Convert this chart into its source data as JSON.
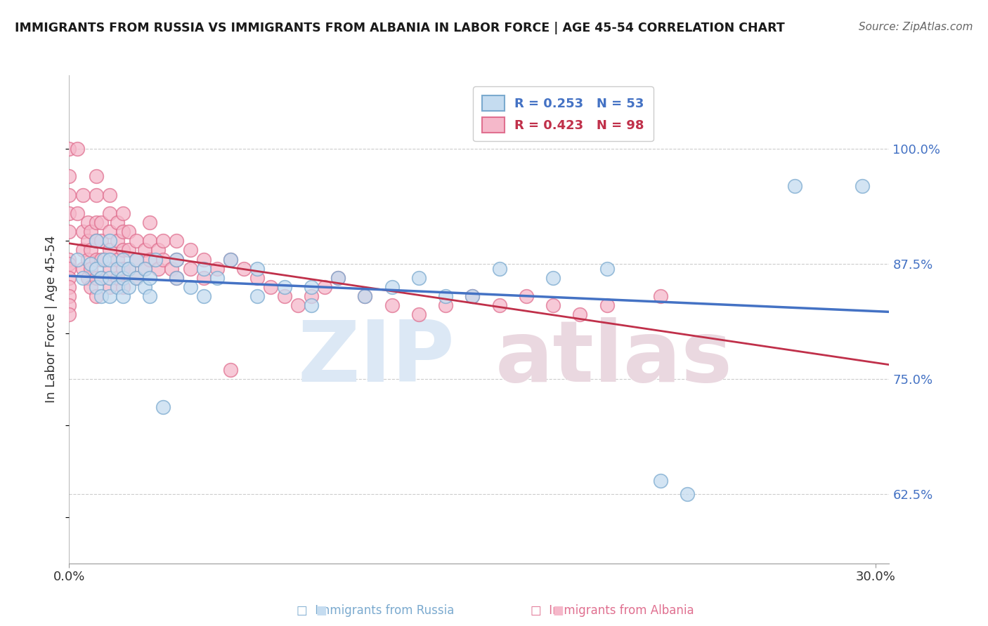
{
  "title": "IMMIGRANTS FROM RUSSIA VS IMMIGRANTS FROM ALBANIA IN LABOR FORCE | AGE 45-54 CORRELATION CHART",
  "source": "Source: ZipAtlas.com",
  "ylabel": "In Labor Force | Age 45-54",
  "russia_R": 0.253,
  "russia_N": 53,
  "albania_R": 0.423,
  "albania_N": 98,
  "russia_color_face": "#c5dcf0",
  "russia_color_edge": "#7baacf",
  "albania_color_face": "#f5b8ca",
  "albania_color_edge": "#e07090",
  "russia_line_color": "#4472c4",
  "albania_line_color": "#c0304a",
  "ytick_vals": [
    1.0,
    0.875,
    0.75,
    0.625
  ],
  "ytick_labels": [
    "100.0%",
    "87.5%",
    "75.0%",
    "62.5%"
  ],
  "ytick_color": "#4472c4",
  "xtick_vals": [
    0.0,
    0.3
  ],
  "xtick_labels": [
    "0.0%",
    "30.0%"
  ],
  "xlim": [
    0.0,
    0.305
  ],
  "ylim": [
    0.55,
    1.08
  ],
  "grid_color": "#cccccc",
  "grid_linestyle": "--",
  "background_color": "#ffffff",
  "watermark_zip_color": "#dce8f5",
  "watermark_atlas_color": "#ead8e0",
  "legend_border_color": "#cccccc",
  "russia_scatter_x": [
    0.003,
    0.005,
    0.008,
    0.01,
    0.01,
    0.01,
    0.012,
    0.012,
    0.013,
    0.015,
    0.015,
    0.015,
    0.015,
    0.018,
    0.018,
    0.02,
    0.02,
    0.02,
    0.022,
    0.022,
    0.025,
    0.025,
    0.028,
    0.028,
    0.03,
    0.03,
    0.032,
    0.035,
    0.04,
    0.04,
    0.045,
    0.05,
    0.05,
    0.055,
    0.06,
    0.07,
    0.07,
    0.08,
    0.09,
    0.09,
    0.1,
    0.11,
    0.12,
    0.13,
    0.14,
    0.15,
    0.16,
    0.18,
    0.2,
    0.22,
    0.23,
    0.27,
    0.295
  ],
  "russia_scatter_y": [
    0.88,
    0.86,
    0.875,
    0.85,
    0.87,
    0.9,
    0.84,
    0.86,
    0.88,
    0.84,
    0.86,
    0.88,
    0.9,
    0.85,
    0.87,
    0.84,
    0.86,
    0.88,
    0.85,
    0.87,
    0.86,
    0.88,
    0.85,
    0.87,
    0.84,
    0.86,
    0.88,
    0.72,
    0.86,
    0.88,
    0.85,
    0.87,
    0.84,
    0.86,
    0.88,
    0.87,
    0.84,
    0.85,
    0.85,
    0.83,
    0.86,
    0.84,
    0.85,
    0.86,
    0.84,
    0.84,
    0.87,
    0.86,
    0.87,
    0.64,
    0.625,
    0.96,
    0.96
  ],
  "albania_scatter_x": [
    0.0,
    0.0,
    0.0,
    0.0,
    0.0,
    0.0,
    0.0,
    0.0,
    0.0,
    0.0,
    0.0,
    0.0,
    0.0,
    0.003,
    0.003,
    0.005,
    0.005,
    0.005,
    0.005,
    0.007,
    0.007,
    0.007,
    0.007,
    0.008,
    0.008,
    0.008,
    0.008,
    0.01,
    0.01,
    0.01,
    0.01,
    0.01,
    0.01,
    0.01,
    0.012,
    0.012,
    0.012,
    0.012,
    0.015,
    0.015,
    0.015,
    0.015,
    0.015,
    0.015,
    0.018,
    0.018,
    0.018,
    0.018,
    0.02,
    0.02,
    0.02,
    0.02,
    0.02,
    0.022,
    0.022,
    0.022,
    0.025,
    0.025,
    0.025,
    0.028,
    0.028,
    0.03,
    0.03,
    0.03,
    0.033,
    0.033,
    0.035,
    0.035,
    0.038,
    0.04,
    0.04,
    0.04,
    0.045,
    0.045,
    0.05,
    0.05,
    0.055,
    0.06,
    0.06,
    0.065,
    0.07,
    0.075,
    0.08,
    0.085,
    0.09,
    0.095,
    0.1,
    0.11,
    0.12,
    0.13,
    0.14,
    0.15,
    0.16,
    0.17,
    0.18,
    0.19,
    0.2,
    0.22
  ],
  "albania_scatter_y": [
    0.88,
    0.875,
    0.87,
    0.86,
    0.85,
    0.84,
    0.83,
    0.82,
    0.91,
    0.93,
    0.95,
    0.97,
    1.0,
    0.93,
    1.0,
    0.87,
    0.89,
    0.91,
    0.95,
    0.86,
    0.88,
    0.9,
    0.92,
    0.85,
    0.87,
    0.89,
    0.91,
    0.84,
    0.86,
    0.88,
    0.9,
    0.92,
    0.95,
    0.97,
    0.86,
    0.88,
    0.9,
    0.92,
    0.85,
    0.87,
    0.89,
    0.91,
    0.93,
    0.95,
    0.86,
    0.88,
    0.9,
    0.92,
    0.85,
    0.87,
    0.89,
    0.91,
    0.93,
    0.87,
    0.89,
    0.91,
    0.86,
    0.88,
    0.9,
    0.87,
    0.89,
    0.88,
    0.9,
    0.92,
    0.87,
    0.89,
    0.88,
    0.9,
    0.87,
    0.86,
    0.88,
    0.9,
    0.87,
    0.89,
    0.86,
    0.88,
    0.87,
    0.76,
    0.88,
    0.87,
    0.86,
    0.85,
    0.84,
    0.83,
    0.84,
    0.85,
    0.86,
    0.84,
    0.83,
    0.82,
    0.83,
    0.84,
    0.83,
    0.84,
    0.83,
    0.82,
    0.83,
    0.84
  ]
}
